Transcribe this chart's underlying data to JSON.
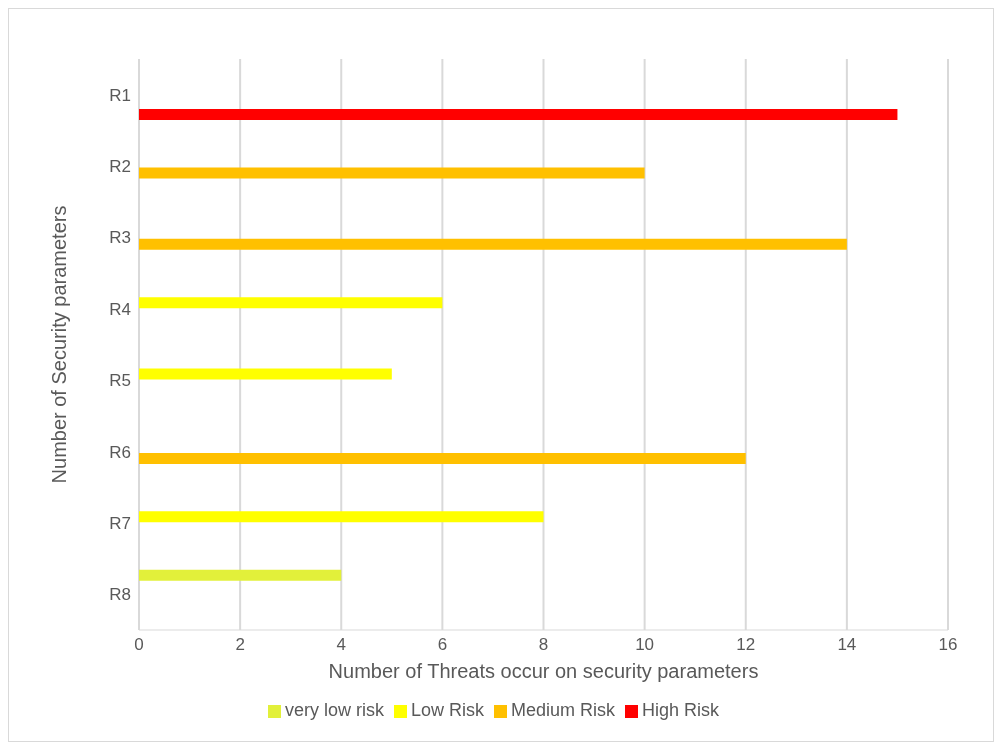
{
  "chart_data": {
    "type": "bar",
    "orientation": "horizontal",
    "xlabel": "Number of Threats occur on security parameters",
    "ylabel": "Number of Security  parameters",
    "categories": [
      "R1",
      "R2",
      "R3",
      "R4",
      "R5",
      "R6",
      "R7",
      "R8"
    ],
    "series": [
      {
        "name": "very low risk",
        "color": "#e2f03a",
        "values": [
          null,
          null,
          null,
          null,
          null,
          null,
          null,
          4
        ]
      },
      {
        "name": "Low Risk",
        "color": "#ffff00",
        "values": [
          null,
          null,
          null,
          6,
          5,
          null,
          8,
          null
        ]
      },
      {
        "name": "Medium Risk",
        "color": "#ffc000",
        "values": [
          null,
          10,
          14,
          null,
          null,
          12,
          null,
          null
        ]
      },
      {
        "name": "High Risk",
        "color": "#ff0000",
        "values": [
          15,
          null,
          null,
          null,
          null,
          null,
          null,
          null
        ]
      }
    ],
    "xlim": [
      0,
      16
    ],
    "xticks": [
      0,
      2,
      4,
      6,
      8,
      10,
      12,
      14,
      16
    ],
    "grid": "x",
    "legend": "bottom"
  }
}
